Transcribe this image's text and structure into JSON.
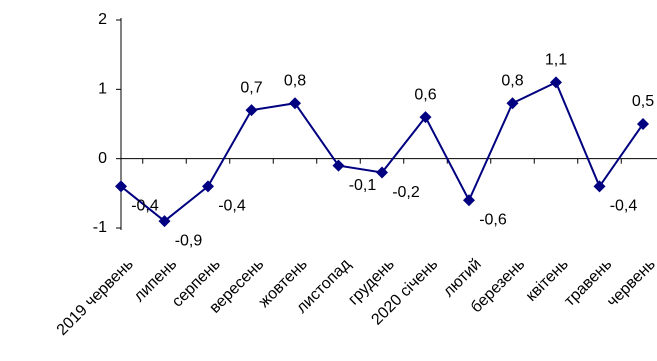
{
  "chart_data": {
    "type": "line",
    "categories": [
      "2019 червень",
      "липень",
      "серпень",
      "вересень",
      "жовтень",
      "листопад",
      "грудень",
      "2020 січень",
      "лютий",
      "березень",
      "квітень",
      "травень",
      "червень"
    ],
    "values": [
      -0.4,
      -0.9,
      -0.4,
      0.7,
      0.8,
      -0.1,
      -0.2,
      0.6,
      -0.6,
      0.8,
      1.1,
      -0.4,
      0.5
    ],
    "value_labels": [
      "-0,4",
      "-0,9",
      "-0,4",
      "0,7",
      "0,8",
      "-0,1",
      "-0,2",
      "0,6",
      "-0,6",
      "0,8",
      "1,1",
      "-0,4",
      "0,5"
    ],
    "color": "#000080",
    "ylim": [
      -1,
      2
    ],
    "yticks": [
      -1,
      0,
      1,
      2
    ],
    "grid": false
  }
}
